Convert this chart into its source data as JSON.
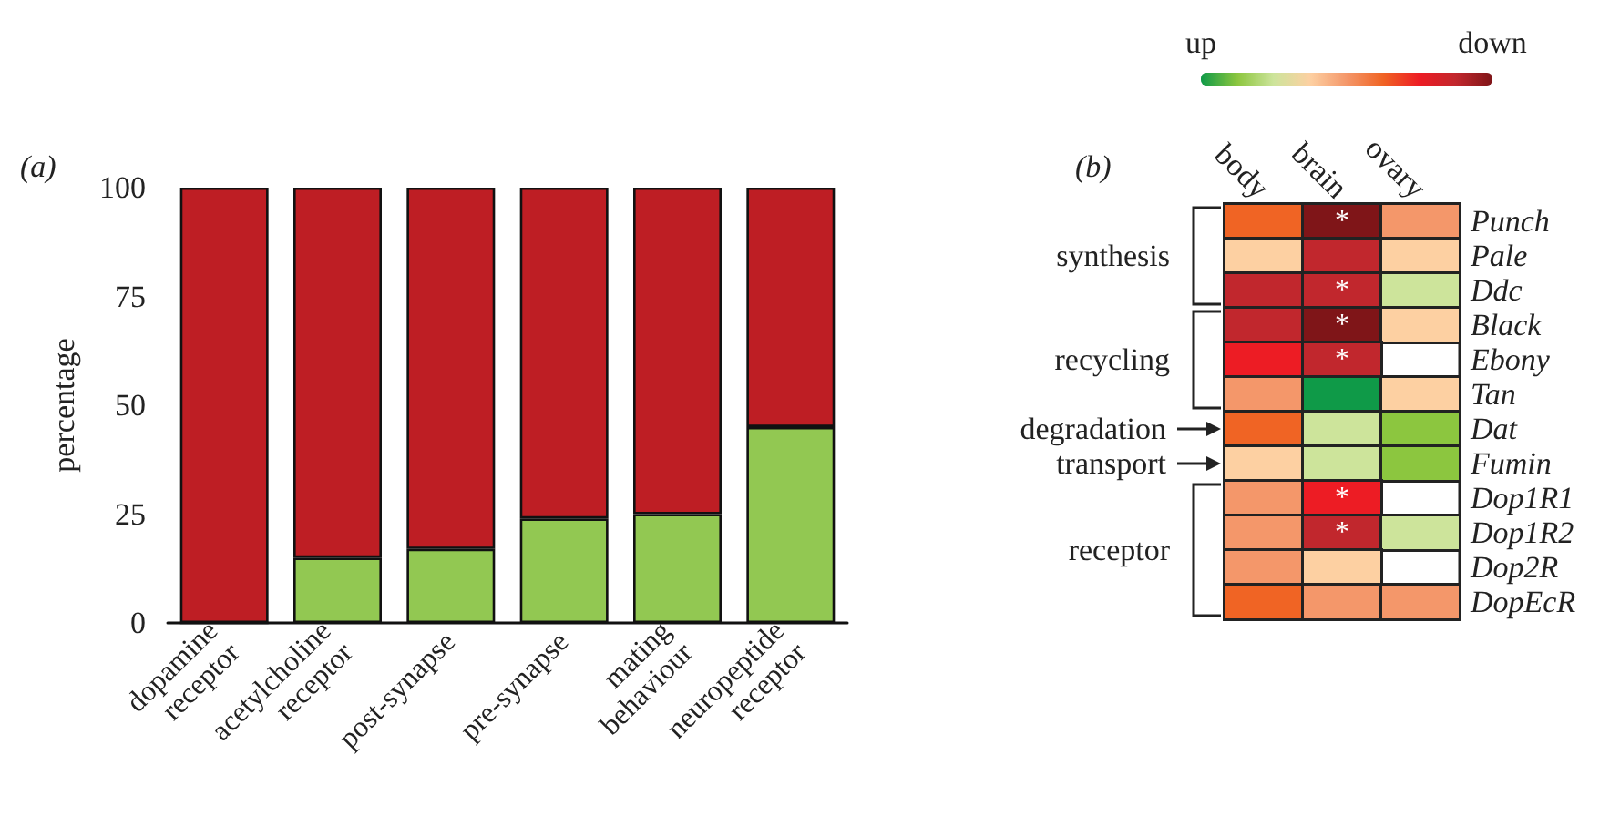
{
  "chart_data": [
    {
      "type": "bar",
      "title": "(a)",
      "ylabel": "percentage",
      "categories": [
        "dopamine receptor",
        "acetylcholine receptor",
        "post-synapse",
        "pre-synapse",
        "mating behaviour",
        "neuropeptide receptor"
      ],
      "stacked": true,
      "series": [
        {
          "color": "#92c852",
          "values": [
            0,
            15,
            17,
            24,
            25,
            45
          ]
        },
        {
          "color": "#be1e24",
          "values": [
            100,
            85,
            83,
            76,
            75,
            55
          ]
        }
      ],
      "ylim": [
        0,
        100
      ],
      "yticks": [
        0,
        25,
        50,
        75,
        100
      ],
      "grid": false
    },
    {
      "type": "heatmap",
      "title": "(b)",
      "categories": [
        "body",
        "brain",
        "ovary"
      ],
      "y_categories": [
        "Punch",
        "Pale",
        "Ddc",
        "Black",
        "Ebony",
        "Tan",
        "Dat",
        "Fumin",
        "Dop1R1",
        "Dop1R2",
        "Dop2R",
        "DopEcR"
      ],
      "cells": [
        [
          6,
          9,
          5
        ],
        [
          4,
          8,
          4
        ],
        [
          8,
          8,
          3
        ],
        [
          8,
          9,
          4
        ],
        [
          7,
          8,
          null
        ],
        [
          5,
          1,
          4
        ],
        [
          6,
          3,
          2
        ],
        [
          4,
          3,
          2
        ],
        [
          5,
          7,
          null
        ],
        [
          5,
          8,
          3
        ],
        [
          5,
          4,
          null
        ],
        [
          6,
          5,
          5
        ]
      ],
      "cell_labels": [
        [
          null,
          "*",
          null
        ],
        [
          null,
          null,
          null
        ],
        [
          null,
          "*",
          null
        ],
        [
          null,
          "*",
          null
        ],
        [
          null,
          "*",
          null
        ],
        [
          null,
          null,
          null
        ],
        [
          null,
          null,
          null
        ],
        [
          null,
          null,
          null
        ],
        [
          null,
          "*",
          null
        ],
        [
          null,
          "*",
          null
        ],
        [
          null,
          null,
          null
        ],
        [
          null,
          null,
          null
        ]
      ],
      "colors": [
        "#0f9a48",
        "#8cc63f",
        "#cde49b",
        "#fdd0a2",
        "#f4976a",
        "#f06424",
        "#ed1c24",
        "#c1272d",
        "#7f1518"
      ],
      "clim": [
        1,
        9
      ],
      "cticks": [
        {
          "value": 1,
          "label": "up"
        },
        {
          "value": 9,
          "label": "down"
        }
      ],
      "annotations": [
        "synthesis",
        "recycling",
        "degradation",
        "transport",
        "receptor"
      ]
    }
  ]
}
